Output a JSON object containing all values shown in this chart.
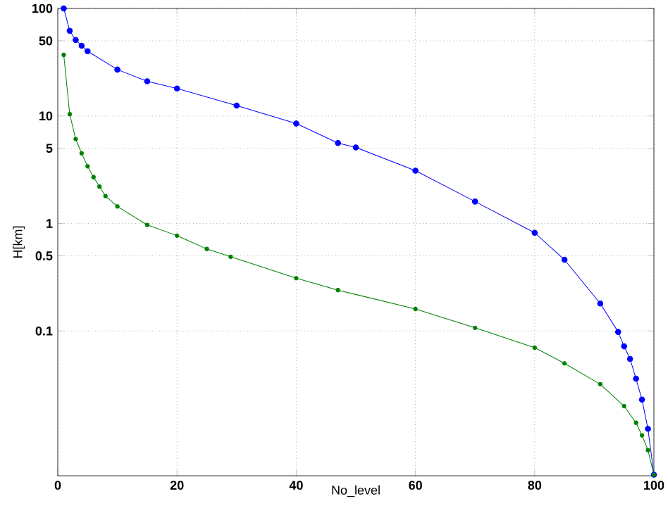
{
  "chart_data": {
    "type": "line",
    "xlabel": "No_level",
    "ylabel": "H[km]",
    "log": "y",
    "xlim": [
      0,
      100
    ],
    "xticks": [
      0,
      20,
      40,
      60,
      80,
      100
    ],
    "ylim": [
      0.0045,
      100
    ],
    "yticks": [
      0.1,
      0.5,
      1,
      5,
      10,
      50,
      100
    ],
    "grid": true,
    "marker": "circle",
    "line_style": "solid",
    "series": [
      {
        "color": "#0000ff",
        "x": [
          1,
          2,
          3,
          4,
          5,
          10,
          15,
          20,
          30,
          40,
          47,
          50,
          60,
          70,
          80,
          85,
          91,
          94,
          95,
          96,
          97,
          98,
          99,
          100
        ],
        "values": [
          100,
          62,
          51,
          45,
          40,
          27,
          21,
          18,
          12.5,
          8.5,
          5.6,
          5.1,
          3.1,
          1.6,
          0.82,
          0.46,
          0.18,
          0.098,
          0.072,
          0.055,
          0.036,
          0.023,
          0.0123,
          0.0046
        ]
      },
      {
        "color": "#008000",
        "x": [
          1,
          2,
          3,
          4,
          5,
          6,
          7,
          8,
          10,
          15,
          20,
          25,
          29,
          40,
          47,
          60,
          70,
          80,
          85,
          91,
          95,
          97,
          98,
          99,
          100
        ],
        "values": [
          37,
          10.4,
          6.1,
          4.5,
          3.4,
          2.7,
          2.2,
          1.8,
          1.44,
          0.97,
          0.77,
          0.58,
          0.49,
          0.31,
          0.24,
          0.16,
          0.107,
          0.07,
          0.05,
          0.032,
          0.02,
          0.014,
          0.0107,
          0.0078,
          0.0046
        ]
      }
    ]
  }
}
